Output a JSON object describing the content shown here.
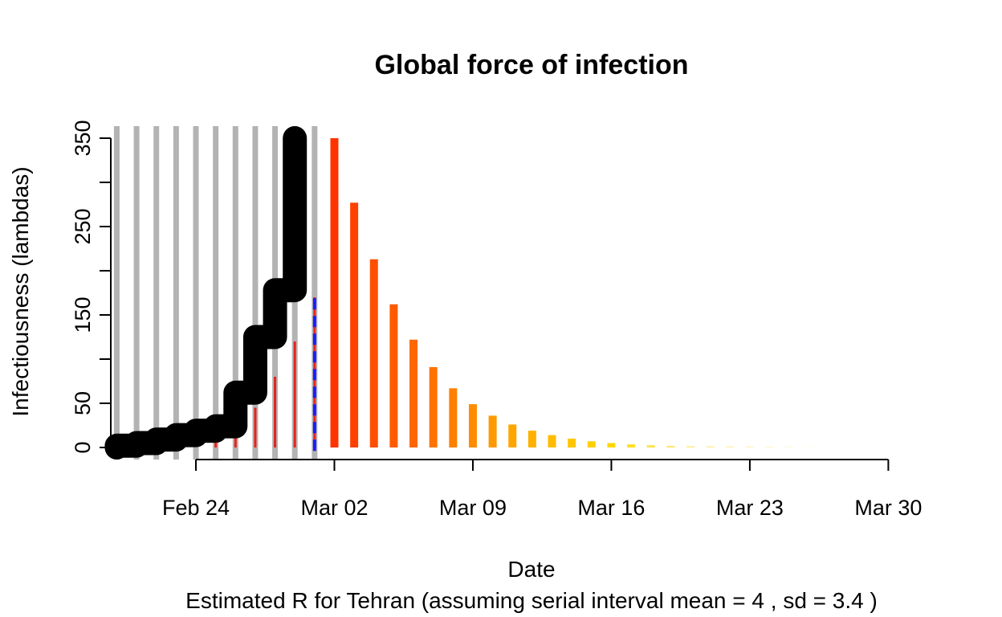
{
  "chart_data": {
    "type": "bar",
    "title": "Global force of infection",
    "xlabel": "Date",
    "subtitle": "Estimated R for Tehran (assuming serial interval mean = 4 , sd = 3.4 )",
    "ylabel": "Infectiousness (lambdas)",
    "ylim": [
      0,
      350
    ],
    "y_ticks": [
      0,
      50,
      150,
      250,
      350
    ],
    "y_minor_ticks": [
      100,
      200,
      300
    ],
    "x_range": [
      "2020-02-20",
      "2020-03-30"
    ],
    "x_ticks": [
      {
        "date": "2020-02-24",
        "label": "Feb 24"
      },
      {
        "date": "2020-03-02",
        "label": "Mar 02"
      },
      {
        "date": "2020-03-09",
        "label": "Mar 09"
      },
      {
        "date": "2020-03-16",
        "label": "Mar 16"
      },
      {
        "date": "2020-03-23",
        "label": "Mar 23"
      },
      {
        "date": "2020-03-30",
        "label": "Mar 30"
      }
    ],
    "observed_dates": [
      "2020-02-20",
      "2020-02-21",
      "2020-02-22",
      "2020-02-23",
      "2020-02-24",
      "2020-02-25",
      "2020-02-26",
      "2020-02-27",
      "2020-02-28",
      "2020-02-29",
      "2020-03-01"
    ],
    "cumulative_lambda": {
      "color": "#000000",
      "steps": [
        {
          "date": "2020-02-20",
          "from": 0,
          "to": 2
        },
        {
          "date": "2020-02-21",
          "from": 2,
          "to": 5
        },
        {
          "date": "2020-02-22",
          "from": 5,
          "to": 9
        },
        {
          "date": "2020-02-23",
          "from": 9,
          "to": 14
        },
        {
          "date": "2020-02-24",
          "from": 14,
          "to": 19
        },
        {
          "date": "2020-02-25",
          "from": 19,
          "to": 24
        },
        {
          "date": "2020-02-26",
          "from": 24,
          "to": 62
        },
        {
          "date": "2020-02-27",
          "from": 62,
          "to": 125
        },
        {
          "date": "2020-02-28",
          "from": 125,
          "to": 178
        },
        {
          "date": "2020-02-29",
          "from": 178,
          "to": 350
        }
      ]
    },
    "past_lambda_bars": {
      "color": "#e8231a",
      "values": [
        {
          "date": "2020-02-25",
          "value": 10
        },
        {
          "date": "2020-02-26",
          "value": 22
        },
        {
          "date": "2020-02-27",
          "value": 45
        },
        {
          "date": "2020-02-28",
          "value": 80
        },
        {
          "date": "2020-02-29",
          "value": 120
        },
        {
          "date": "2020-03-01",
          "value": 170
        }
      ]
    },
    "future_lambda_bars": [
      {
        "date": "2020-03-02",
        "value": 350,
        "color": "#ff3300"
      },
      {
        "date": "2020-03-03",
        "value": 277,
        "color": "#ff4000"
      },
      {
        "date": "2020-03-04",
        "value": 213,
        "color": "#ff4e00"
      },
      {
        "date": "2020-03-05",
        "value": 162,
        "color": "#ff5a00"
      },
      {
        "date": "2020-03-06",
        "value": 122,
        "color": "#ff6600"
      },
      {
        "date": "2020-03-07",
        "value": 91,
        "color": "#ff7300"
      },
      {
        "date": "2020-03-08",
        "value": 67,
        "color": "#ff8000"
      },
      {
        "date": "2020-03-09",
        "value": 49,
        "color": "#ff8c00"
      },
      {
        "date": "2020-03-10",
        "value": 36,
        "color": "#ff9900"
      },
      {
        "date": "2020-03-11",
        "value": 26,
        "color": "#ffa500"
      },
      {
        "date": "2020-03-12",
        "value": 19,
        "color": "#ffb100"
      },
      {
        "date": "2020-03-13",
        "value": 14,
        "color": "#ffbc00"
      },
      {
        "date": "2020-03-14",
        "value": 10,
        "color": "#ffc600"
      },
      {
        "date": "2020-03-15",
        "value": 7,
        "color": "#ffcf00"
      },
      {
        "date": "2020-03-16",
        "value": 5,
        "color": "#ffd700"
      },
      {
        "date": "2020-03-17",
        "value": 3.5,
        "color": "#ffdd22"
      },
      {
        "date": "2020-03-18",
        "value": 2.5,
        "color": "#ffe244"
      },
      {
        "date": "2020-03-19",
        "value": 1.8,
        "color": "#ffe766"
      },
      {
        "date": "2020-03-20",
        "value": 1.3,
        "color": "#ffeb80"
      },
      {
        "date": "2020-03-21",
        "value": 0.9,
        "color": "#ffef99"
      },
      {
        "date": "2020-03-22",
        "value": 0.6,
        "color": "#fff2b0"
      },
      {
        "date": "2020-03-23",
        "value": 0.4,
        "color": "#fff5c4"
      },
      {
        "date": "2020-03-24",
        "value": 0.3,
        "color": "#fff8d6"
      },
      {
        "date": "2020-03-25",
        "value": 0.2,
        "color": "#fffae4"
      },
      {
        "date": "2020-03-26",
        "value": 0.1,
        "color": "#fffcf0"
      }
    ],
    "case_date_lines_color": "#b3b3b3",
    "current_date_marker": {
      "date": "2020-03-01",
      "color": "#1a1aff",
      "style": "dashed"
    },
    "grid": false
  }
}
